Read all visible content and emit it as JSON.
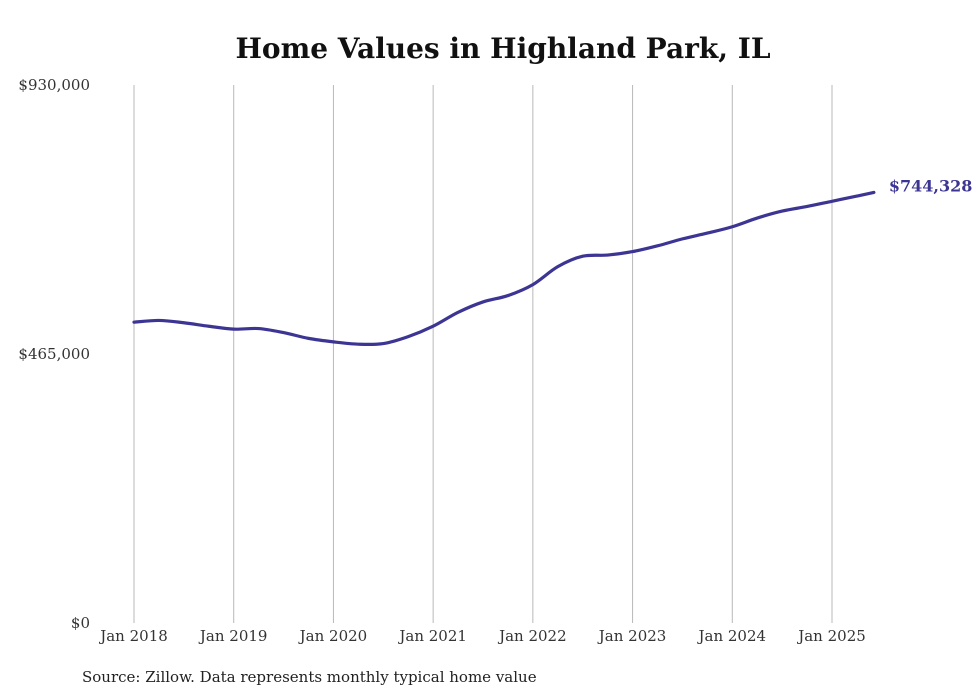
{
  "colors": {
    "line": "#3c3593",
    "end_label": "#3c3593",
    "grid": "#b8b8b8",
    "text": "#333333"
  },
  "chart_data": {
    "type": "line",
    "title": "Home Values in Highland Park, IL",
    "xlabel": "",
    "ylabel": "",
    "ylim": [
      0,
      930000
    ],
    "xlim": [
      2018.0,
      2025.45
    ],
    "y_ticks": [
      {
        "value": 0,
        "label": "$0"
      },
      {
        "value": 465000,
        "label": "$465,000"
      },
      {
        "value": 930000,
        "label": "$930,000"
      }
    ],
    "x_ticks": [
      {
        "value": 2018,
        "label": "Jan 2018"
      },
      {
        "value": 2019,
        "label": "Jan 2019"
      },
      {
        "value": 2020,
        "label": "Jan 2020"
      },
      {
        "value": 2021,
        "label": "Jan 2021"
      },
      {
        "value": 2022,
        "label": "Jan 2022"
      },
      {
        "value": 2023,
        "label": "Jan 2023"
      },
      {
        "value": 2024,
        "label": "Jan 2024"
      },
      {
        "value": 2025,
        "label": "Jan 2025"
      }
    ],
    "grid": "vertical",
    "series": [
      {
        "name": "Typical home value",
        "x": [
          2018.0,
          2018.25,
          2018.5,
          2018.75,
          2019.0,
          2019.25,
          2019.5,
          2019.75,
          2020.0,
          2020.25,
          2020.5,
          2020.75,
          2021.0,
          2021.25,
          2021.5,
          2021.75,
          2022.0,
          2022.25,
          2022.5,
          2022.75,
          2023.0,
          2023.25,
          2023.5,
          2023.75,
          2024.0,
          2024.25,
          2024.5,
          2024.75,
          2025.0,
          2025.25,
          2025.42
        ],
        "values": [
          520000,
          523000,
          519000,
          513000,
          508000,
          509000,
          502000,
          492000,
          486000,
          482000,
          483000,
          495000,
          513000,
          537000,
          555000,
          566000,
          585000,
          616000,
          634000,
          636000,
          642000,
          652000,
          664000,
          674000,
          685000,
          700000,
          712000,
          720000,
          729000,
          738000,
          744328
        ]
      }
    ],
    "end_label": "$744,328"
  },
  "footer": {
    "source": "Source: Zillow. Data represents monthly typical home value"
  }
}
